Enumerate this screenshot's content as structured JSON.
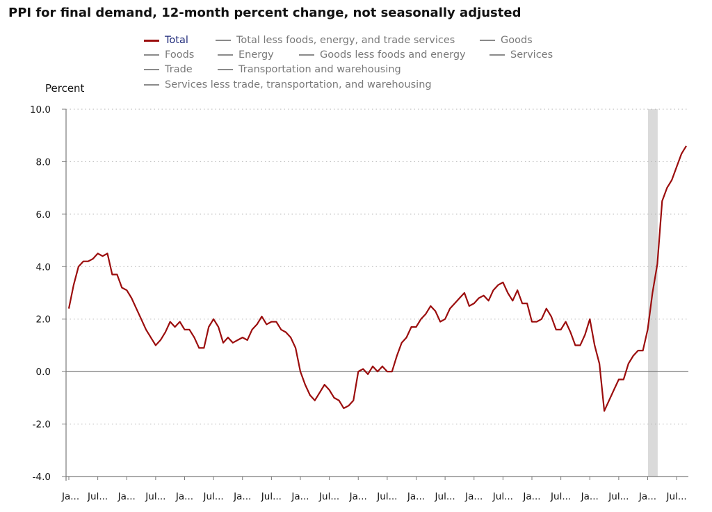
{
  "title": "PPI for final demand, 12-month percent change, not seasonally adjusted",
  "legend": [
    {
      "label": "Total",
      "active": true
    },
    {
      "label": "Total less foods, energy, and trade services",
      "active": false
    },
    {
      "label": "Goods",
      "active": false
    },
    {
      "label": "Foods",
      "active": false
    },
    {
      "label": "Energy",
      "active": false
    },
    {
      "label": "Goods less foods and energy",
      "active": false
    },
    {
      "label": "Services",
      "active": false
    },
    {
      "label": "Trade",
      "active": false
    },
    {
      "label": "Transportation and warehousing",
      "active": false
    },
    {
      "label": "Services less trade, transportation, and warehousing",
      "active": false
    }
  ],
  "colors": {
    "series": "#9b0d0d",
    "inactive": "#8a8a8a",
    "recession": "#dadada",
    "grid": "#b0b0b0",
    "axis": "#7a7a7a"
  },
  "chart_data": {
    "type": "line",
    "ylabel": "Percent",
    "ylim": [
      -4.0,
      10.0
    ],
    "yticks": [
      "10.0",
      "8.0",
      "6.0",
      "4.0",
      "2.0",
      "0.0",
      "-2.0",
      "-4.0"
    ],
    "xtick_labels": [
      "Ja...",
      "Jul...",
      "Ja...",
      "Jul...",
      "Ja...",
      "Jul...",
      "Ja...",
      "Jul...",
      "Ja...",
      "Jul...",
      "Ja...",
      "Jul...",
      "Ja...",
      "Jul...",
      "Ja...",
      "Jul...",
      "Ja...",
      "Jul...",
      "Ja...",
      "Jul...",
      "Ja...",
      "Jul..."
    ],
    "grid": true,
    "legend_position": "top",
    "recession_shading": [
      {
        "start_month_index": 121,
        "end_month_index": 122
      }
    ],
    "series": [
      {
        "name": "Total",
        "values": [
          2.4,
          3.3,
          4.0,
          4.2,
          4.2,
          4.3,
          4.5,
          4.4,
          4.5,
          3.7,
          3.7,
          3.2,
          3.1,
          2.8,
          2.4,
          2.0,
          1.6,
          1.3,
          1.0,
          1.2,
          1.5,
          1.9,
          1.7,
          1.9,
          1.6,
          1.6,
          1.3,
          0.9,
          0.9,
          1.7,
          2.0,
          1.7,
          1.1,
          1.3,
          1.1,
          1.2,
          1.3,
          1.2,
          1.6,
          1.8,
          2.1,
          1.8,
          1.9,
          1.9,
          1.6,
          1.5,
          1.3,
          0.9,
          0.0,
          -0.5,
          -0.9,
          -1.1,
          -0.8,
          -0.5,
          -0.7,
          -1.0,
          -1.1,
          -1.4,
          -1.3,
          -1.1,
          0.0,
          0.1,
          -0.1,
          0.2,
          0.0,
          0.2,
          0.0,
          0.0,
          0.6,
          1.1,
          1.3,
          1.7,
          1.7,
          2.0,
          2.2,
          2.5,
          2.3,
          1.9,
          2.0,
          2.4,
          2.6,
          2.8,
          3.0,
          2.5,
          2.6,
          2.8,
          2.9,
          2.7,
          3.1,
          3.3,
          3.4,
          3.0,
          2.7,
          3.1,
          2.6,
          2.6,
          1.9,
          1.9,
          2.0,
          2.4,
          2.1,
          1.6,
          1.6,
          1.9,
          1.5,
          1.0,
          1.0,
          1.4,
          2.0,
          1.0,
          0.3,
          -1.5,
          -1.1,
          -0.7,
          -0.3,
          -0.3,
          0.3,
          0.6,
          0.8,
          0.8,
          1.6,
          3.0,
          4.1,
          6.5,
          7.0,
          7.3,
          7.8,
          8.3,
          8.6
        ]
      }
    ]
  }
}
